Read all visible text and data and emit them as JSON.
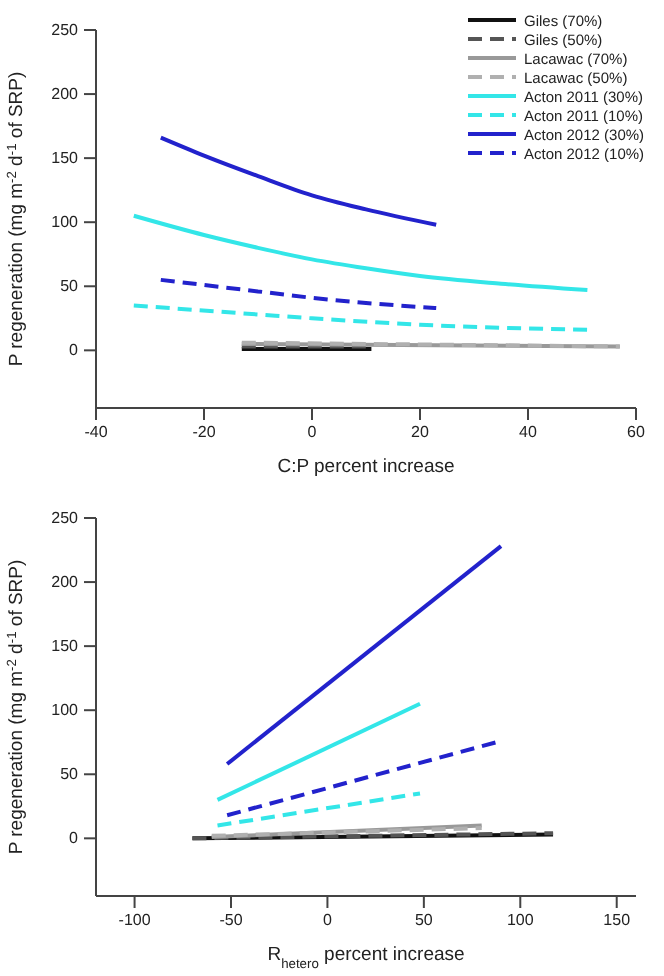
{
  "chart_data": [
    {
      "type": "line",
      "xlabel": "C:P percent increase",
      "ylabel": "P regeneration (mg m$^{-2}$ d$^{-1}$ of SRP)",
      "xlim": [
        -40,
        60
      ],
      "xticks": [
        -40,
        -20,
        0,
        20,
        40,
        60
      ],
      "ylim": [
        -45,
        250
      ],
      "yticks": [
        0,
        50,
        100,
        150,
        200,
        250
      ],
      "grid": false,
      "legend": "top right",
      "series": [
        {
          "name": "Giles (70%)",
          "color": "#111111",
          "line_style": "solid",
          "x": [
            -13,
            11
          ],
          "values": [
            1,
            1
          ]
        },
        {
          "name": "Giles (50%)",
          "color": "#555555",
          "line_style": "dashed",
          "x": [
            -13,
            11
          ],
          "values": [
            3,
            3
          ]
        },
        {
          "name": "Lacawac (70%)",
          "color": "#999999",
          "line_style": "solid",
          "x": [
            -13,
            57
          ],
          "values": [
            5,
            3
          ]
        },
        {
          "name": "Lacawac (50%)",
          "color": "#b0b0b0",
          "line_style": "dashed",
          "x": [
            -13,
            57
          ],
          "values": [
            6,
            3
          ]
        },
        {
          "name": "Acton 2011 (30%)",
          "color": "#33e6e8",
          "line_style": "solid",
          "x": [
            -33,
            -20,
            -10,
            0,
            10,
            20,
            35,
            51
          ],
          "values": [
            105,
            90,
            80,
            71,
            64,
            58,
            52,
            47
          ]
        },
        {
          "name": "Acton 2011 (10%)",
          "color": "#33e6e8",
          "line_style": "dashed",
          "x": [
            -33,
            -10,
            0,
            20,
            51
          ],
          "values": [
            35,
            28,
            25,
            20,
            16
          ]
        },
        {
          "name": "Acton 2012 (30%)",
          "color": "#2222cc",
          "line_style": "solid",
          "x": [
            -28,
            -20,
            -10,
            0,
            10,
            23
          ],
          "values": [
            166,
            152,
            136,
            121,
            110,
            98
          ]
        },
        {
          "name": "Acton 2012 (10%)",
          "color": "#2222cc",
          "line_style": "dashed",
          "x": [
            -28,
            -10,
            0,
            10,
            23
          ],
          "values": [
            55,
            46,
            41,
            37,
            33
          ]
        }
      ]
    },
    {
      "type": "line",
      "xlabel": "R$_{hetero}$ percent increase",
      "ylabel": "P regeneration (mg m$^{-2}$ d$^{-1}$ of SRP)",
      "xlim": [
        -120,
        160
      ],
      "xticks": [
        -100,
        -50,
        0,
        50,
        100,
        150
      ],
      "ylim": [
        -45,
        250
      ],
      "yticks": [
        0,
        50,
        100,
        150,
        200,
        250
      ],
      "grid": false,
      "series": [
        {
          "color": "#111111",
          "line_style": "solid",
          "x": [
            -70,
            117
          ],
          "values": [
            0,
            3
          ]
        },
        {
          "color": "#555555",
          "line_style": "dashed",
          "x": [
            -70,
            117
          ],
          "values": [
            0,
            4
          ]
        },
        {
          "color": "#999999",
          "line_style": "solid",
          "x": [
            -60,
            80
          ],
          "values": [
            1,
            10
          ]
        },
        {
          "color": "#b0b0b0",
          "line_style": "dashed",
          "x": [
            -60,
            80
          ],
          "values": [
            2,
            8
          ]
        },
        {
          "color": "#33e6e8",
          "line_style": "solid",
          "x": [
            -57,
            48
          ],
          "values": [
            30,
            105
          ]
        },
        {
          "color": "#33e6e8",
          "line_style": "dashed",
          "x": [
            -57,
            48
          ],
          "values": [
            10,
            35
          ]
        },
        {
          "color": "#2222cc",
          "line_style": "solid",
          "x": [
            -52,
            90
          ],
          "values": [
            58,
            228
          ]
        },
        {
          "color": "#2222cc",
          "line_style": "dashed",
          "x": [
            -52,
            90
          ],
          "values": [
            18,
            76
          ]
        }
      ]
    }
  ]
}
